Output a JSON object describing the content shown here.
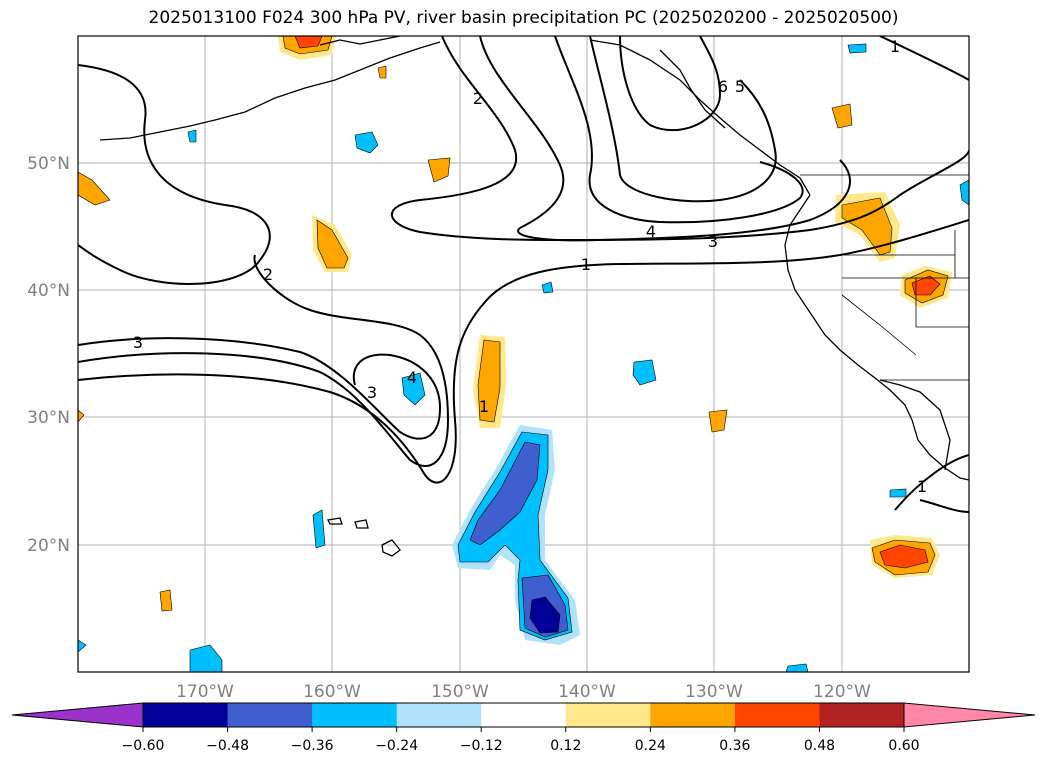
{
  "title": "2025013100 F024 300 hPa PV, river basin precipitation PC (2025020200 - 2025020500)",
  "map": {
    "lon_range": [
      -180,
      -110
    ],
    "lat_range": [
      10,
      60
    ],
    "lat_ticks": [
      "50°N",
      "40°N",
      "30°N",
      "20°N"
    ],
    "lon_ticks": [
      "170°W",
      "160°W",
      "150°W",
      "140°W",
      "130°W",
      "120°W"
    ],
    "grid": true,
    "contour_labels": [
      "1",
      "2",
      "3",
      "4",
      "5",
      "6"
    ]
  },
  "colorbar": {
    "ticks": [
      "−0.60",
      "−0.48",
      "−0.36",
      "−0.24",
      "−0.12",
      "0.12",
      "0.24",
      "0.36",
      "0.48",
      "0.60"
    ],
    "colors": [
      "#9933cc",
      "#000099",
      "#3f5fcf",
      "#00bfff",
      "#b0e2fa",
      "#ffffff",
      "#ffe88a",
      "#ffa500",
      "#ff4500",
      "#b22222",
      "#ff88aa"
    ]
  },
  "colors": {
    "coast": "#000000",
    "grid": "#b0b0b0",
    "tick_label": "#808080"
  }
}
